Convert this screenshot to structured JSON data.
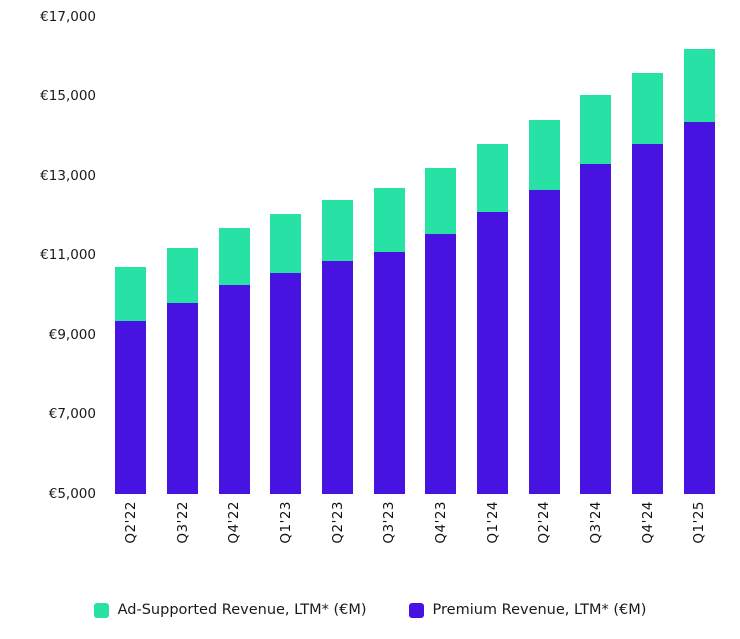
{
  "chart_data": {
    "type": "bar",
    "stacked": true,
    "title": "",
    "xlabel": "",
    "ylabel": "",
    "categories": [
      "Q2'22",
      "Q3'22",
      "Q4'22",
      "Q1'23",
      "Q2'23",
      "Q3'23",
      "Q4'23",
      "Q1'24",
      "Q2'24",
      "Q3'24",
      "Q4'24",
      "Q1'25"
    ],
    "series": [
      {
        "name": "Premium Revenue, LTM* (€M)",
        "color": "#4713e0",
        "values": [
          9350,
          9800,
          10250,
          10550,
          10850,
          11100,
          11550,
          12100,
          12650,
          13300,
          13800,
          14350
        ]
      },
      {
        "name": "Ad-Supported Revenue, LTM* (€M)",
        "color": "#27e2a4",
        "values": [
          1350,
          1400,
          1450,
          1500,
          1550,
          1600,
          1650,
          1700,
          1750,
          1750,
          1800,
          1850
        ]
      }
    ],
    "stacked_totals": [
      10700,
      11200,
      11700,
      12050,
      12400,
      12700,
      13200,
      13800,
      14400,
      15050,
      15600,
      16200
    ],
    "ylim": [
      5000,
      17000
    ],
    "yticks": [
      5000,
      7000,
      9000,
      11000,
      13000,
      15000,
      17000
    ],
    "ytick_labels": [
      "€5,000",
      "€7,000",
      "€9,000",
      "€11,000",
      "€13,000",
      "€15,000",
      "€17,000"
    ],
    "grid": false,
    "legend_position": "bottom",
    "legend": [
      {
        "label": "Ad-Supported Revenue, LTM* (€M)",
        "color": "#27e2a4"
      },
      {
        "label": "Premium Revenue, LTM* (€M)",
        "color": "#4713e0"
      }
    ]
  }
}
